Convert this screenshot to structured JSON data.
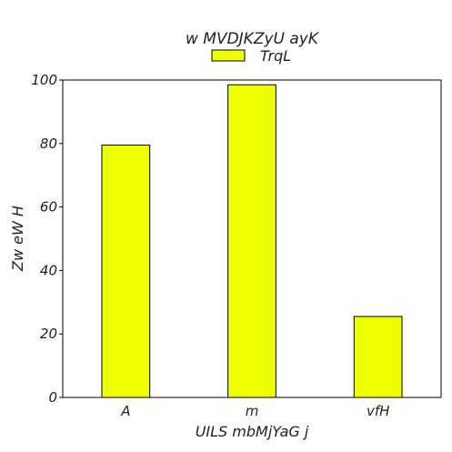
{
  "chart_data": {
    "type": "bar",
    "title": "w MVDJKZyU ayK",
    "xlabel": "UILS mbMjYaG j",
    "ylabel": "Zw  eW H",
    "categories": [
      "A",
      "m",
      "vfH"
    ],
    "series": [
      {
        "name": "TrqL",
        "values": [
          79.5,
          98.5,
          25.5
        ],
        "color": "#eeff00"
      }
    ],
    "ylim": [
      0,
      100
    ],
    "yticks": [
      0,
      20,
      40,
      60,
      80,
      100
    ],
    "grid": false,
    "legend": "top-center"
  }
}
